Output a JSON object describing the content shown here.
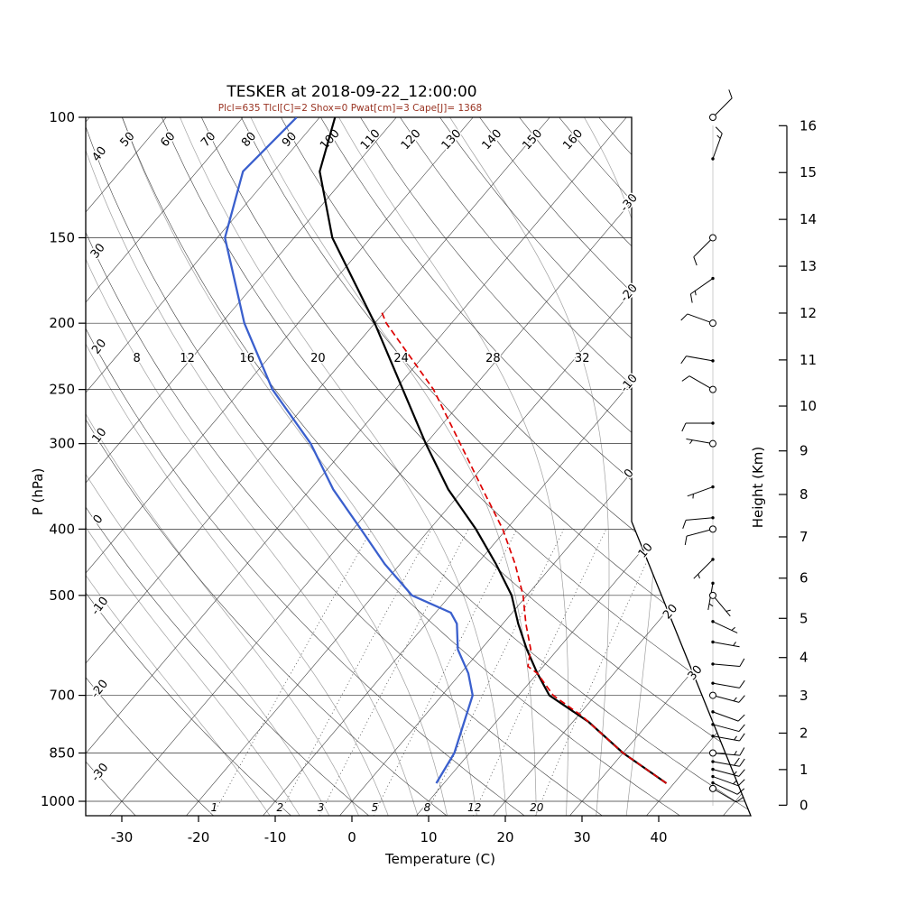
{
  "chart_data": {
    "type": "skewt_log_p_sounding",
    "station": "TESKER",
    "datetime": "2018-09-22_12:00:00",
    "title": "TESKER at 2018-09-22_12:00:00",
    "subtitle": "Plcl=635 Tlcl[C]=2 Shox=0 Pwat[cm]=3 Cape[J]= 1368",
    "parameters": {
      "Plcl": 635,
      "Tlcl_C": 2,
      "Shox": 0,
      "Pwat_cm": 3,
      "Cape_J": 1368
    },
    "axes": {
      "pressure": {
        "label": "P (hPa)",
        "scale": "log",
        "range_hpa": [
          100,
          1050
        ],
        "ticks": [
          100,
          150,
          200,
          250,
          300,
          400,
          500,
          700,
          850,
          1000
        ]
      },
      "temperature": {
        "label": "Temperature (C)",
        "ticks": [
          -30,
          -20,
          -10,
          0,
          10,
          20,
          30,
          40
        ]
      },
      "height": {
        "label": "Height (Km)",
        "ticks": [
          0,
          1,
          2,
          3,
          4,
          5,
          6,
          7,
          8,
          9,
          10,
          11,
          12,
          13,
          14,
          15,
          16
        ]
      }
    },
    "grid": {
      "isotherm_step_c": 10,
      "isotherm_edge_labels_c": [
        -30,
        -20,
        -10,
        0,
        10,
        20,
        30
      ],
      "dry_adiabat_labels_top_c": [
        50,
        60,
        70,
        80,
        90,
        100,
        110,
        120,
        130,
        140,
        150,
        160
      ],
      "dry_adiabat_labels_left_c": [
        40,
        30,
        20,
        10,
        0,
        -10,
        -20,
        -30
      ],
      "moist_adiabat_values_c": [
        -12,
        -8,
        -4,
        0,
        4,
        8,
        12,
        16,
        20,
        24,
        28,
        32,
        36
      ],
      "moist_adiabat_labels_c": [
        8,
        12,
        16,
        20,
        24,
        28,
        32
      ],
      "moist_label_pressure_hpa": 225,
      "mixing_ratio_g_kg": [
        1,
        2,
        3,
        5,
        8,
        12,
        20
      ]
    },
    "sounding": {
      "temperature_c": [
        [
          941,
          39
        ],
        [
          850,
          30
        ],
        [
          765,
          22
        ],
        [
          700,
          14
        ],
        [
          650,
          10
        ],
        [
          600,
          6
        ],
        [
          550,
          2
        ],
        [
          500,
          -2
        ],
        [
          450,
          -7.5
        ],
        [
          400,
          -14
        ],
        [
          350,
          -22
        ],
        [
          300,
          -30
        ],
        [
          250,
          -39
        ],
        [
          200,
          -50
        ],
        [
          150,
          -65
        ],
        [
          120,
          -74
        ],
        [
          100,
          -78
        ]
      ],
      "dewpoint_c": [
        [
          941,
          9
        ],
        [
          850,
          8
        ],
        [
          700,
          4
        ],
        [
          650,
          1
        ],
        [
          600,
          -3
        ],
        [
          550,
          -6
        ],
        [
          530,
          -8
        ],
        [
          500,
          -15
        ],
        [
          450,
          -22
        ],
        [
          400,
          -29
        ],
        [
          350,
          -37
        ],
        [
          300,
          -45
        ],
        [
          250,
          -56
        ],
        [
          200,
          -67
        ],
        [
          150,
          -79
        ],
        [
          120,
          -84
        ],
        [
          100,
          -83
        ]
      ],
      "parcel_c": [
        [
          941,
          39
        ],
        [
          850,
          30
        ],
        [
          750,
          20.5
        ],
        [
          700,
          14.5
        ],
        [
          650,
          10
        ],
        [
          635,
          8
        ],
        [
          600,
          6.5
        ],
        [
          550,
          3
        ],
        [
          500,
          -0.5
        ],
        [
          450,
          -5
        ],
        [
          400,
          -10.5
        ],
        [
          350,
          -17.5
        ],
        [
          300,
          -25.5
        ],
        [
          250,
          -35
        ],
        [
          200,
          -48.5
        ],
        [
          192,
          -50.5
        ]
      ]
    },
    "winds_p_dir_spd": [
      [
        100,
        45,
        10
      ],
      [
        115,
        20,
        15
      ],
      [
        150,
        225,
        10
      ],
      [
        172,
        235,
        15
      ],
      [
        200,
        290,
        10
      ],
      [
        227,
        280,
        10
      ],
      [
        250,
        300,
        10
      ],
      [
        280,
        270,
        10
      ],
      [
        300,
        280,
        5
      ],
      [
        347,
        250,
        5
      ],
      [
        385,
        265,
        10
      ],
      [
        400,
        255,
        10
      ],
      [
        443,
        225,
        5
      ],
      [
        480,
        190,
        5
      ],
      [
        500,
        140,
        5
      ],
      [
        546,
        115,
        5
      ],
      [
        585,
        100,
        5
      ],
      [
        630,
        95,
        10
      ],
      [
        672,
        100,
        10
      ],
      [
        700,
        105,
        15
      ],
      [
        740,
        110,
        10
      ],
      [
        772,
        105,
        10
      ],
      [
        803,
        100,
        15
      ],
      [
        850,
        95,
        15
      ],
      [
        875,
        100,
        20
      ],
      [
        898,
        105,
        15
      ],
      [
        920,
        110,
        15
      ],
      [
        940,
        115,
        10
      ],
      [
        958,
        120,
        10
      ]
    ],
    "wind_circle_levels_hpa": [
      100,
      150,
      200,
      250,
      300,
      400,
      500,
      700,
      850,
      958
    ],
    "colors": {
      "temperature": "#000000",
      "dewpoint": "#3a5fcd",
      "parcel": "#dd0000",
      "subtitle": "#993322",
      "grid": "#333333",
      "moist_adiabat": "#a0a0a0"
    }
  }
}
